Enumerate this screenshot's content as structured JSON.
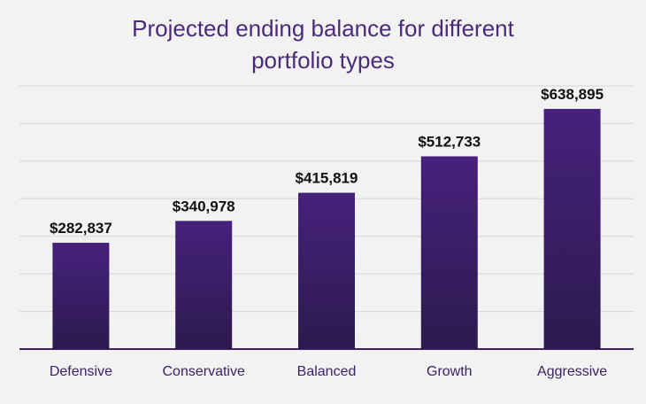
{
  "chart_data": {
    "type": "bar",
    "title_lines": [
      "Projected ending balance for different",
      "portfolio types"
    ],
    "categories": [
      "Defensive",
      "Conservative",
      "Balanced",
      "Growth",
      "Aggressive"
    ],
    "values": [
      282837,
      340978,
      415819,
      512733,
      638895
    ],
    "value_labels": [
      "$282,837",
      "$340,978",
      "$415,819",
      "$512,733",
      "$638,895"
    ],
    "xlabel": "",
    "ylabel": "",
    "ylim": [
      0,
      700000
    ],
    "grid": true,
    "legend": "none",
    "colors": {
      "bar_top": "#46217c",
      "bar_bottom": "#2c1a4e",
      "title": "#4b2a7b",
      "grid": "#d6d6d6",
      "axis": "#3a2366"
    }
  }
}
